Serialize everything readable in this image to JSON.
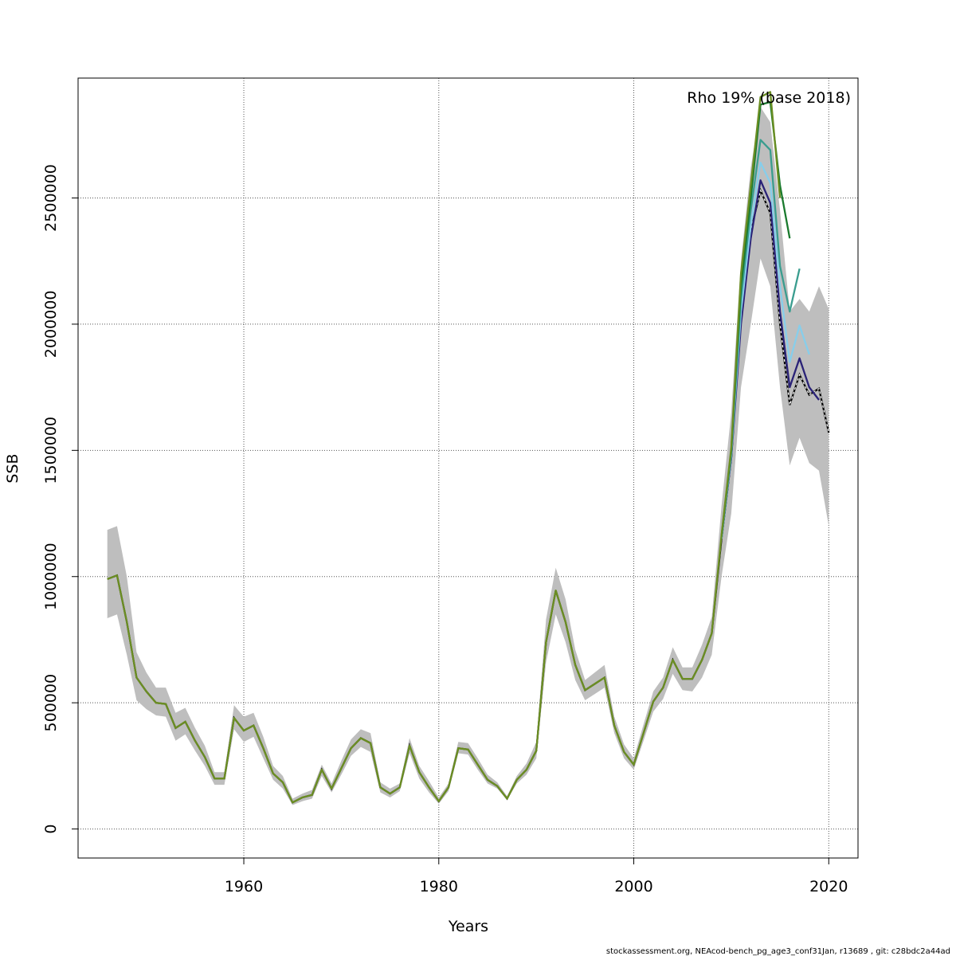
{
  "chart_data": {
    "type": "line",
    "title": "",
    "xlabel": "Years",
    "ylabel": "SSB",
    "xlim": [
      1943,
      2023
    ],
    "ylim": [
      -115000,
      2975000
    ],
    "x_ticks": [
      1960,
      1980,
      2000,
      2020
    ],
    "y_ticks": [
      0,
      500000,
      1000000,
      1500000,
      2000000,
      2500000
    ],
    "x_tick_labels": [
      "1960",
      "1980",
      "2000",
      "2020"
    ],
    "y_tick_labels": [
      "0",
      "500000",
      "1000000",
      "1500000",
      "2000000",
      "2500000"
    ],
    "grid": true,
    "annotation": "Rho 19% (base 2018)",
    "footer": "stockassessment.org, NEAcod-bench_pg_age3_conf31Jan, r13689 , git: c28bdc2a44ad",
    "ci_color": "#bebebe",
    "base": {
      "x": [
        1946,
        1947,
        1948,
        1949,
        1950,
        1951,
        1952,
        1953,
        1954,
        1955,
        1956,
        1957,
        1958,
        1959,
        1960,
        1961,
        1962,
        1963,
        1964,
        1965,
        1966,
        1967,
        1968,
        1969,
        1970,
        1971,
        1972,
        1973,
        1974,
        1975,
        1976,
        1977,
        1978,
        1979,
        1980,
        1981,
        1982,
        1983,
        1984,
        1985,
        1986,
        1987,
        1988,
        1989,
        1990,
        1991,
        1992,
        1993,
        1994,
        1995,
        1996,
        1997,
        1998,
        1999,
        2000,
        2001,
        2002,
        2003,
        2004,
        2005,
        2006,
        2007,
        2008,
        2009,
        2010,
        2011,
        2012,
        2013,
        2014,
        2015,
        2016,
        2017,
        2018,
        2019,
        2020
      ],
      "y": [
        990000,
        1005000,
        820000,
        600000,
        545000,
        500000,
        495000,
        400000,
        425000,
        350000,
        285000,
        200000,
        200000,
        440000,
        390000,
        410000,
        320000,
        220000,
        185000,
        105000,
        125000,
        135000,
        235000,
        160000,
        240000,
        320000,
        360000,
        340000,
        165000,
        140000,
        165000,
        330000,
        225000,
        165000,
        110000,
        165000,
        320000,
        315000,
        255000,
        195000,
        170000,
        120000,
        195000,
        235000,
        310000,
        740000,
        945000,
        820000,
        650000,
        550000,
        575000,
        600000,
        410000,
        305000,
        255000,
        380000,
        505000,
        560000,
        670000,
        595000,
        595000,
        670000,
        775000,
        1150000,
        1470000,
        2050000,
        2370000,
        2530000,
        2440000,
        2000000,
        1680000,
        1800000,
        1720000,
        1745000,
        1570000
      ],
      "lower": [
        835000,
        850000,
        690000,
        510000,
        475000,
        450000,
        445000,
        350000,
        375000,
        310000,
        250000,
        175000,
        175000,
        395000,
        345000,
        365000,
        280000,
        195000,
        160000,
        95000,
        110000,
        120000,
        210000,
        145000,
        215000,
        290000,
        325000,
        305000,
        145000,
        125000,
        150000,
        300000,
        200000,
        145000,
        100000,
        150000,
        300000,
        295000,
        235000,
        180000,
        160000,
        115000,
        180000,
        215000,
        280000,
        660000,
        850000,
        740000,
        590000,
        510000,
        535000,
        560000,
        380000,
        280000,
        235000,
        350000,
        465000,
        515000,
        615000,
        550000,
        545000,
        600000,
        690000,
        1000000,
        1250000,
        1750000,
        2000000,
        2260000,
        2150000,
        1750000,
        1440000,
        1550000,
        1450000,
        1420000,
        1200000
      ],
      "upper": [
        1185000,
        1200000,
        1000000,
        700000,
        620000,
        560000,
        560000,
        460000,
        480000,
        400000,
        330000,
        225000,
        225000,
        490000,
        445000,
        460000,
        365000,
        250000,
        210000,
        120000,
        140000,
        155000,
        255000,
        180000,
        270000,
        355000,
        395000,
        380000,
        185000,
        160000,
        180000,
        360000,
        250000,
        190000,
        125000,
        180000,
        345000,
        340000,
        280000,
        215000,
        185000,
        130000,
        210000,
        260000,
        345000,
        830000,
        1035000,
        910000,
        710000,
        590000,
        620000,
        650000,
        445000,
        335000,
        280000,
        415000,
        545000,
        600000,
        720000,
        640000,
        640000,
        730000,
        840000,
        1280000,
        1650000,
        2250000,
        2620000,
        2860000,
        2800000,
        2450000,
        2050000,
        2100000,
        2050000,
        2150000,
        2060000
      ],
      "color": "#000000",
      "dashed": true
    },
    "series": [
      {
        "peel": 2019,
        "color": "#2a2277",
        "x": [
          2009,
          2010,
          2011,
          2012,
          2013,
          2014,
          2015,
          2016,
          2017,
          2018,
          2019
        ],
        "y": [
          1150000,
          1470000,
          2000000,
          2340000,
          2570000,
          2480000,
          2050000,
          1750000,
          1865000,
          1750000,
          1700000
        ]
      },
      {
        "peel": 2018,
        "color": "#87ceeb",
        "x": [
          2009,
          2010,
          2011,
          2012,
          2013,
          2014,
          2015,
          2016,
          2017,
          2018
        ],
        "y": [
          1150000,
          1480000,
          2050000,
          2390000,
          2640000,
          2560000,
          2150000,
          1850000,
          1995000,
          1880000
        ]
      },
      {
        "peel": 2017,
        "color": "#3a9d8f",
        "x": [
          2009,
          2010,
          2011,
          2012,
          2013,
          2014,
          2015,
          2016,
          2017
        ],
        "y": [
          1155000,
          1490000,
          2100000,
          2450000,
          2730000,
          2690000,
          2230000,
          2050000,
          2220000
        ]
      },
      {
        "peel": 2016,
        "color": "#1a7a2e",
        "x": [
          2009,
          2010,
          2011,
          2012,
          2013,
          2014,
          2015,
          2016
        ],
        "y": [
          1160000,
          1500000,
          2150000,
          2500000,
          2870000,
          2880000,
          2550000,
          2340000
        ]
      },
      {
        "peel": 2015,
        "color": "#6b8e23",
        "x": [
          1946,
          1947,
          1948,
          1949,
          1950,
          1951,
          1952,
          1953,
          1954,
          1955,
          1956,
          1957,
          1958,
          1959,
          1960,
          1961,
          1962,
          1963,
          1964,
          1965,
          1966,
          1967,
          1968,
          1969,
          1970,
          1971,
          1972,
          1973,
          1974,
          1975,
          1976,
          1977,
          1978,
          1979,
          1980,
          1981,
          1982,
          1983,
          1984,
          1985,
          1986,
          1987,
          1988,
          1989,
          1990,
          1991,
          1992,
          1993,
          1994,
          1995,
          1996,
          1997,
          1998,
          1999,
          2000,
          2001,
          2002,
          2003,
          2004,
          2005,
          2006,
          2007,
          2008,
          2009,
          2010,
          2011,
          2012,
          2013,
          2014,
          2015
        ],
        "y": [
          990000,
          1005000,
          820000,
          600000,
          545000,
          500000,
          495000,
          400000,
          425000,
          350000,
          285000,
          200000,
          200000,
          440000,
          390000,
          410000,
          320000,
          220000,
          185000,
          105000,
          125000,
          135000,
          235000,
          160000,
          240000,
          320000,
          360000,
          340000,
          165000,
          140000,
          165000,
          330000,
          225000,
          165000,
          110000,
          165000,
          320000,
          315000,
          255000,
          195000,
          170000,
          120000,
          195000,
          235000,
          310000,
          740000,
          945000,
          820000,
          650000,
          550000,
          575000,
          600000,
          410000,
          305000,
          255000,
          380000,
          505000,
          560000,
          670000,
          595000,
          595000,
          670000,
          775000,
          1165000,
          1510000,
          2200000,
          2550000,
          2900000,
          2920000,
          2500000
        ]
      }
    ]
  }
}
